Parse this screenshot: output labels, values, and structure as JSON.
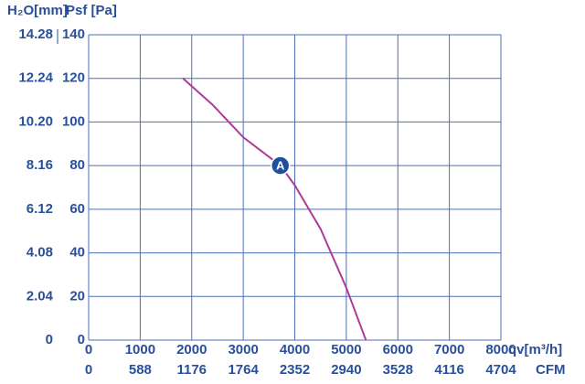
{
  "chart_data": {
    "type": "line",
    "y2_label": "H₂O[mm]",
    "y_label": "Psf [Pa]",
    "x_label": "qv[m³/h]",
    "x2_label": "CFM",
    "xlim": [
      0,
      8000
    ],
    "xticks": [
      0,
      1000,
      2000,
      3000,
      4000,
      5000,
      6000,
      7000,
      8000
    ],
    "x2lim": [
      0,
      4704
    ],
    "x2ticks": [
      0,
      588,
      1176,
      1764,
      2352,
      2940,
      3528,
      4116,
      4704
    ],
    "ylim": [
      0,
      140
    ],
    "yticks": [
      0,
      20,
      40,
      60,
      80,
      100,
      120,
      140
    ],
    "y2lim": [
      0,
      14.28
    ],
    "y2ticks": [
      0,
      2.04,
      4.08,
      6.12,
      8.16,
      {
        "value": 10.2,
        "label": "10.20"
      },
      12.24,
      14.28
    ],
    "grid": true,
    "series": [
      {
        "color": "#b03a9a",
        "x": [
          1830,
          2400,
          3000,
          3500,
          3720,
          4000,
          4500,
          5000,
          5380
        ],
        "values": [
          120,
          108,
          93,
          84,
          80,
          71,
          51,
          24,
          0
        ]
      }
    ],
    "annotations": [
      {
        "label": "A",
        "x": 3720,
        "y": 80
      }
    ]
  }
}
